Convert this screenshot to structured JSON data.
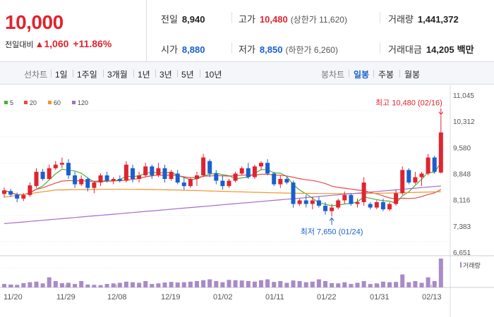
{
  "quote": {
    "price": "10,000",
    "change_label": "전일대비",
    "change_arrow": "▲",
    "change": "1,060",
    "change_pct": "+11.86%"
  },
  "stats": {
    "prev_close_label": "전일",
    "prev_close": "8,940",
    "high_label": "고가",
    "high": "10,480",
    "upper_limit": "(상한가 11,620)",
    "volume_label": "거래량",
    "volume": "1,441,372",
    "open_label": "시가",
    "open": "8,880",
    "low_label": "저가",
    "low": "8,850",
    "lower_limit": "(하한가 6,260)",
    "value_label": "거래대금",
    "value": "14,205",
    "value_unit": "백만"
  },
  "toolbar": {
    "line_title": "선차트",
    "periods": [
      "1일",
      "1주일",
      "3개월",
      "1년",
      "3년",
      "5년",
      "10년"
    ],
    "candle_title": "봉차트",
    "candle_types": [
      "일봉",
      "주봉",
      "월봉"
    ],
    "active_candle": "일봉"
  },
  "chart_data": {
    "type": "candlestick",
    "legend": [
      {
        "name": "5",
        "color": "#4caf3c"
      },
      {
        "name": "20",
        "color": "#e84a4a"
      },
      {
        "name": "60",
        "color": "#f0952a"
      },
      {
        "name": "120",
        "color": "#a66cc9"
      }
    ],
    "y_ticks": [
      "11,045",
      "10,312",
      "9,580",
      "8,848",
      "8,116",
      "7,383",
      "6,651"
    ],
    "ylim": [
      6651,
      11045
    ],
    "x_ticks": [
      "11/20",
      "11/29",
      "12/08",
      "12/19",
      "01/02",
      "01/11",
      "01/22",
      "01/31",
      "02/13"
    ],
    "volume_label": "거래량",
    "annotations": {
      "high": "최고 10,480 (02/16)",
      "low": "최저 7,650 (01/24)"
    },
    "candles": [
      [
        8280,
        8460,
        8180,
        8380
      ],
      [
        8360,
        8420,
        8200,
        8260
      ],
      [
        8260,
        8320,
        8050,
        8150
      ],
      [
        8150,
        8300,
        8080,
        8250
      ],
      [
        8250,
        8600,
        8200,
        8520
      ],
      [
        8500,
        9000,
        8450,
        8900
      ],
      [
        8900,
        8980,
        8650,
        8700
      ],
      [
        8700,
        9100,
        8680,
        9000
      ],
      [
        9000,
        9200,
        8950,
        9100
      ],
      [
        9100,
        9300,
        9000,
        9150
      ],
      [
        9150,
        9250,
        8700,
        8800
      ],
      [
        8800,
        8900,
        8450,
        8550
      ],
      [
        8550,
        8800,
        8500,
        8700
      ],
      [
        8700,
        8750,
        8350,
        8450
      ],
      [
        8450,
        8650,
        8300,
        8600
      ],
      [
        8600,
        8850,
        8500,
        8800
      ],
      [
        8800,
        8900,
        8600,
        8650
      ],
      [
        8650,
        8750,
        8550,
        8700
      ],
      [
        8700,
        8800,
        8600,
        8650
      ],
      [
        8650,
        9200,
        8600,
        9100
      ],
      [
        9000,
        9100,
        8600,
        8700
      ],
      [
        8700,
        8900,
        8600,
        8800
      ],
      [
        8800,
        9150,
        8750,
        9050
      ],
      [
        9050,
        9100,
        8700,
        8800
      ],
      [
        8800,
        9150,
        8750,
        9000
      ],
      [
        9000,
        9100,
        8600,
        8700
      ],
      [
        8700,
        8950,
        8650,
        8900
      ],
      [
        8850,
        8950,
        8550,
        8600
      ],
      [
        8600,
        8750,
        8400,
        8500
      ],
      [
        8500,
        8750,
        8450,
        8700
      ],
      [
        8700,
        8900,
        8500,
        8800
      ],
      [
        8800,
        9400,
        8750,
        9300
      ],
      [
        9200,
        9250,
        8750,
        8850
      ],
      [
        8850,
        8950,
        8550,
        8650
      ],
      [
        8650,
        8800,
        8400,
        8500
      ],
      [
        8500,
        8700,
        8450,
        8650
      ],
      [
        8650,
        8900,
        8600,
        8850
      ],
      [
        8850,
        9050,
        8800,
        9000
      ],
      [
        9000,
        9150,
        8700,
        8750
      ],
      [
        8750,
        9100,
        8700,
        9050
      ],
      [
        9050,
        9200,
        8950,
        9150
      ],
      [
        9150,
        9250,
        8800,
        8850
      ],
      [
        8850,
        8900,
        8500,
        8550
      ],
      [
        8550,
        8800,
        8450,
        8700
      ],
      [
        8700,
        8750,
        8550,
        8600
      ],
      [
        8600,
        8650,
        7900,
        8000
      ],
      [
        8000,
        8150,
        7950,
        8100
      ],
      [
        8100,
        8250,
        7900,
        8000
      ],
      [
        8000,
        8200,
        7850,
        8100
      ],
      [
        8100,
        8200,
        7900,
        7950
      ],
      [
        7950,
        8050,
        7700,
        7800
      ],
      [
        7800,
        8000,
        7650,
        7900
      ],
      [
        7900,
        8150,
        7850,
        8100
      ],
      [
        8100,
        8350,
        8000,
        8250
      ],
      [
        8250,
        8300,
        7950,
        8000
      ],
      [
        8000,
        8150,
        7900,
        8050
      ],
      [
        8050,
        8750,
        7950,
        8600
      ],
      [
        8000,
        8050,
        7850,
        7900
      ],
      [
        7900,
        8100,
        7850,
        8050
      ],
      [
        8050,
        8150,
        7800,
        7850
      ],
      [
        7850,
        8050,
        7800,
        8000
      ],
      [
        8000,
        8400,
        7950,
        8300
      ],
      [
        8300,
        9050,
        8250,
        8950
      ],
      [
        8950,
        9000,
        8550,
        8600
      ],
      [
        8600,
        8900,
        8550,
        8750
      ],
      [
        8750,
        8900,
        8500,
        8850
      ],
      [
        8850,
        9400,
        8800,
        9300
      ],
      [
        9300,
        9350,
        8850,
        8900
      ],
      [
        8880,
        10480,
        8850,
        10000
      ]
    ],
    "volumes": [
      0.12,
      0.1,
      0.09,
      0.15,
      0.18,
      0.2,
      0.14,
      0.35,
      0.22,
      0.15,
      0.16,
      0.12,
      0.22,
      0.1,
      0.09,
      0.08,
      0.12,
      0.14,
      0.16,
      0.2,
      0.18,
      0.16,
      0.22,
      0.12,
      0.14,
      0.17,
      0.19,
      0.17,
      0.18,
      0.2,
      0.22,
      0.25,
      0.28,
      0.22,
      0.18,
      0.26,
      0.25,
      0.24,
      0.22,
      0.2,
      0.25,
      0.28,
      0.19,
      0.22,
      0.16,
      0.24,
      0.22,
      0.18,
      0.2,
      0.28,
      0.22,
      0.15,
      0.14,
      0.18,
      0.12,
      0.16,
      0.22,
      0.12,
      0.14,
      0.2,
      0.18,
      0.19,
      0.45,
      0.18,
      0.22,
      0.16,
      0.35,
      0.22,
      1.0
    ]
  }
}
